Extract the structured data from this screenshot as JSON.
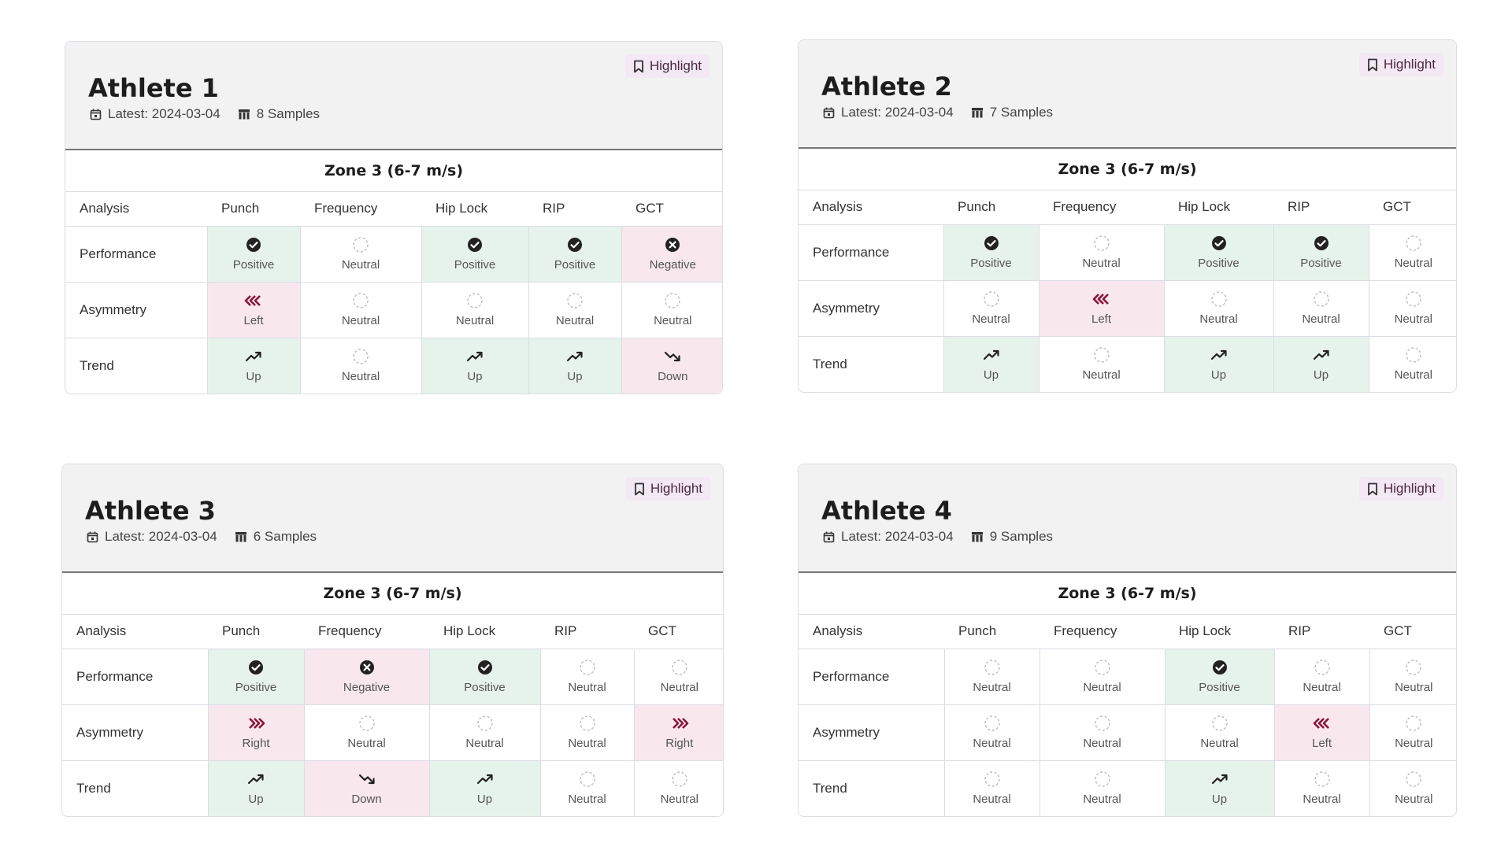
{
  "highlight_label": "Highlight",
  "zone_title": "Zone 3 (6-7 m/s)",
  "columns": [
    "Analysis",
    "Punch",
    "Frequency",
    "Hip Lock",
    "RIP",
    "GCT"
  ],
  "rows": [
    "Performance",
    "Asymmetry",
    "Trend"
  ],
  "colors": {
    "positive_bg": "#e6f3ec",
    "negative_bg": "#f8e8ee",
    "accent": "#8a1538"
  },
  "athletes": [
    {
      "name": "Athlete 1",
      "latest": "Latest: 2024-03-04",
      "samples": "8 Samples",
      "cells": [
        [
          {
            "s": "pos",
            "icon": "check-circle-icon",
            "label": "Positive"
          },
          {
            "s": "neu",
            "icon": "dashed-circle-icon",
            "label": "Neutral"
          },
          {
            "s": "pos",
            "icon": "check-circle-icon",
            "label": "Positive"
          },
          {
            "s": "pos",
            "icon": "check-circle-icon",
            "label": "Positive"
          },
          {
            "s": "neg",
            "icon": "x-circle-icon",
            "label": "Negative"
          }
        ],
        [
          {
            "s": "neg",
            "icon": "left-arrows-icon",
            "label": "Left"
          },
          {
            "s": "neu",
            "icon": "dashed-circle-icon",
            "label": "Neutral"
          },
          {
            "s": "neu",
            "icon": "dashed-circle-icon",
            "label": "Neutral"
          },
          {
            "s": "neu",
            "icon": "dashed-circle-icon",
            "label": "Neutral"
          },
          {
            "s": "neu",
            "icon": "dashed-circle-icon",
            "label": "Neutral"
          }
        ],
        [
          {
            "s": "pos",
            "icon": "trend-up-icon",
            "label": "Up"
          },
          {
            "s": "neu",
            "icon": "dashed-circle-icon",
            "label": "Neutral"
          },
          {
            "s": "pos",
            "icon": "trend-up-icon",
            "label": "Up"
          },
          {
            "s": "pos",
            "icon": "trend-up-icon",
            "label": "Up"
          },
          {
            "s": "neg",
            "icon": "trend-down-icon",
            "label": "Down"
          }
        ]
      ]
    },
    {
      "name": "Athlete 2",
      "latest": "Latest: 2024-03-04",
      "samples": "7 Samples",
      "cells": [
        [
          {
            "s": "pos",
            "icon": "check-circle-icon",
            "label": "Positive"
          },
          {
            "s": "neu",
            "icon": "dashed-circle-icon",
            "label": "Neutral"
          },
          {
            "s": "pos",
            "icon": "check-circle-icon",
            "label": "Positive"
          },
          {
            "s": "pos",
            "icon": "check-circle-icon",
            "label": "Positive"
          },
          {
            "s": "neu",
            "icon": "dashed-circle-icon",
            "label": "Neutral"
          }
        ],
        [
          {
            "s": "neu",
            "icon": "dashed-circle-icon",
            "label": "Neutral"
          },
          {
            "s": "neg",
            "icon": "left-arrows-icon",
            "label": "Left"
          },
          {
            "s": "neu",
            "icon": "dashed-circle-icon",
            "label": "Neutral"
          },
          {
            "s": "neu",
            "icon": "dashed-circle-icon",
            "label": "Neutral"
          },
          {
            "s": "neu",
            "icon": "dashed-circle-icon",
            "label": "Neutral"
          }
        ],
        [
          {
            "s": "pos",
            "icon": "trend-up-icon",
            "label": "Up"
          },
          {
            "s": "neu",
            "icon": "dashed-circle-icon",
            "label": "Neutral"
          },
          {
            "s": "pos",
            "icon": "trend-up-icon",
            "label": "Up"
          },
          {
            "s": "pos",
            "icon": "trend-up-icon",
            "label": "Up"
          },
          {
            "s": "neu",
            "icon": "dashed-circle-icon",
            "label": "Neutral"
          }
        ]
      ]
    },
    {
      "name": "Athlete 3",
      "latest": "Latest: 2024-03-04",
      "samples": "6 Samples",
      "cells": [
        [
          {
            "s": "pos",
            "icon": "check-circle-icon",
            "label": "Positive"
          },
          {
            "s": "neg",
            "icon": "x-circle-icon",
            "label": "Negative"
          },
          {
            "s": "pos",
            "icon": "check-circle-icon",
            "label": "Positive"
          },
          {
            "s": "neu",
            "icon": "dashed-circle-icon",
            "label": "Neutral"
          },
          {
            "s": "neu",
            "icon": "dashed-circle-icon",
            "label": "Neutral"
          }
        ],
        [
          {
            "s": "neg",
            "icon": "right-arrows-icon",
            "label": "Right"
          },
          {
            "s": "neu",
            "icon": "dashed-circle-icon",
            "label": "Neutral"
          },
          {
            "s": "neu",
            "icon": "dashed-circle-icon",
            "label": "Neutral"
          },
          {
            "s": "neu",
            "icon": "dashed-circle-icon",
            "label": "Neutral"
          },
          {
            "s": "neg",
            "icon": "right-arrows-icon",
            "label": "Right"
          }
        ],
        [
          {
            "s": "pos",
            "icon": "trend-up-icon",
            "label": "Up"
          },
          {
            "s": "neg",
            "icon": "trend-down-icon",
            "label": "Down"
          },
          {
            "s": "pos",
            "icon": "trend-up-icon",
            "label": "Up"
          },
          {
            "s": "neu",
            "icon": "dashed-circle-icon",
            "label": "Neutral"
          },
          {
            "s": "neu",
            "icon": "dashed-circle-icon",
            "label": "Neutral"
          }
        ]
      ]
    },
    {
      "name": "Athlete 4",
      "latest": "Latest: 2024-03-04",
      "samples": "9 Samples",
      "cells": [
        [
          {
            "s": "neu",
            "icon": "dashed-circle-icon",
            "label": "Neutral"
          },
          {
            "s": "neu",
            "icon": "dashed-circle-icon",
            "label": "Neutral"
          },
          {
            "s": "pos",
            "icon": "check-circle-icon",
            "label": "Positive"
          },
          {
            "s": "neu",
            "icon": "dashed-circle-icon",
            "label": "Neutral"
          },
          {
            "s": "neu",
            "icon": "dashed-circle-icon",
            "label": "Neutral"
          }
        ],
        [
          {
            "s": "neu",
            "icon": "dashed-circle-icon",
            "label": "Neutral"
          },
          {
            "s": "neu",
            "icon": "dashed-circle-icon",
            "label": "Neutral"
          },
          {
            "s": "neu",
            "icon": "dashed-circle-icon",
            "label": "Neutral"
          },
          {
            "s": "neg",
            "icon": "left-arrows-icon",
            "label": "Left"
          },
          {
            "s": "neu",
            "icon": "dashed-circle-icon",
            "label": "Neutral"
          }
        ],
        [
          {
            "s": "neu",
            "icon": "dashed-circle-icon",
            "label": "Neutral"
          },
          {
            "s": "neu",
            "icon": "dashed-circle-icon",
            "label": "Neutral"
          },
          {
            "s": "pos",
            "icon": "trend-up-icon",
            "label": "Up"
          },
          {
            "s": "neu",
            "icon": "dashed-circle-icon",
            "label": "Neutral"
          },
          {
            "s": "neu",
            "icon": "dashed-circle-icon",
            "label": "Neutral"
          }
        ]
      ]
    }
  ]
}
